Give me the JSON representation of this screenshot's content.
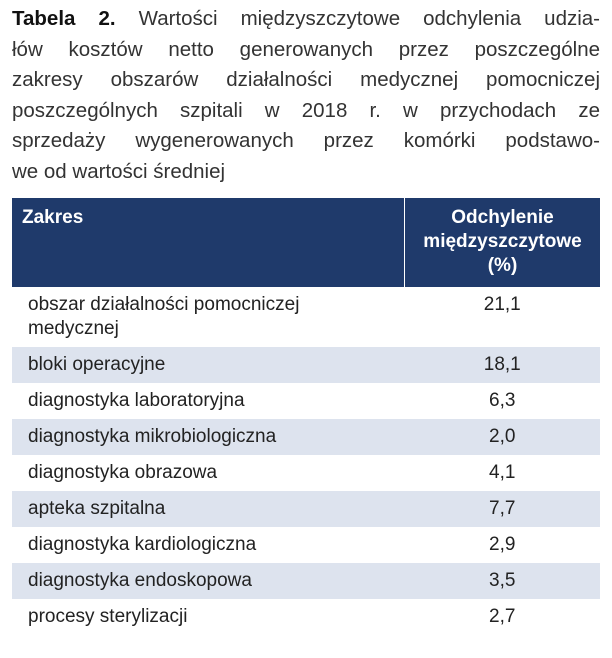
{
  "caption": {
    "label": "Tabela 2.",
    "lines": [
      "Wartości międzyszczytowe odchylenia udzia-",
      "łów kosztów netto generowanych przez poszczególne",
      "zakresy obszarów działalności medycznej pomocniczej",
      "poszczególnych szpitali w 2018 r. w przychodach ze",
      "sprzedaży wygenerowanych przez komórki podstawo-",
      "we od wartości średniej"
    ]
  },
  "table": {
    "header": [
      "Zakres",
      "Odchylenie międzyszczytowe (%)"
    ],
    "rows": [
      [
        "obszar działalności pomocniczej medycznej",
        "21,1"
      ],
      [
        "bloki operacyjne",
        "18,1"
      ],
      [
        "diagnostyka laboratoryjna",
        "6,3"
      ],
      [
        "diagnostyka mikrobiologiczna",
        "2,0"
      ],
      [
        "diagnostyka obrazowa",
        "4,1"
      ],
      [
        "apteka szpitalna",
        "7,7"
      ],
      [
        "diagnostyka kardiologiczna",
        "2,9"
      ],
      [
        "diagnostyka endoskopowa",
        "3,5"
      ],
      [
        "procesy sterylizacji",
        "2,7"
      ]
    ]
  }
}
